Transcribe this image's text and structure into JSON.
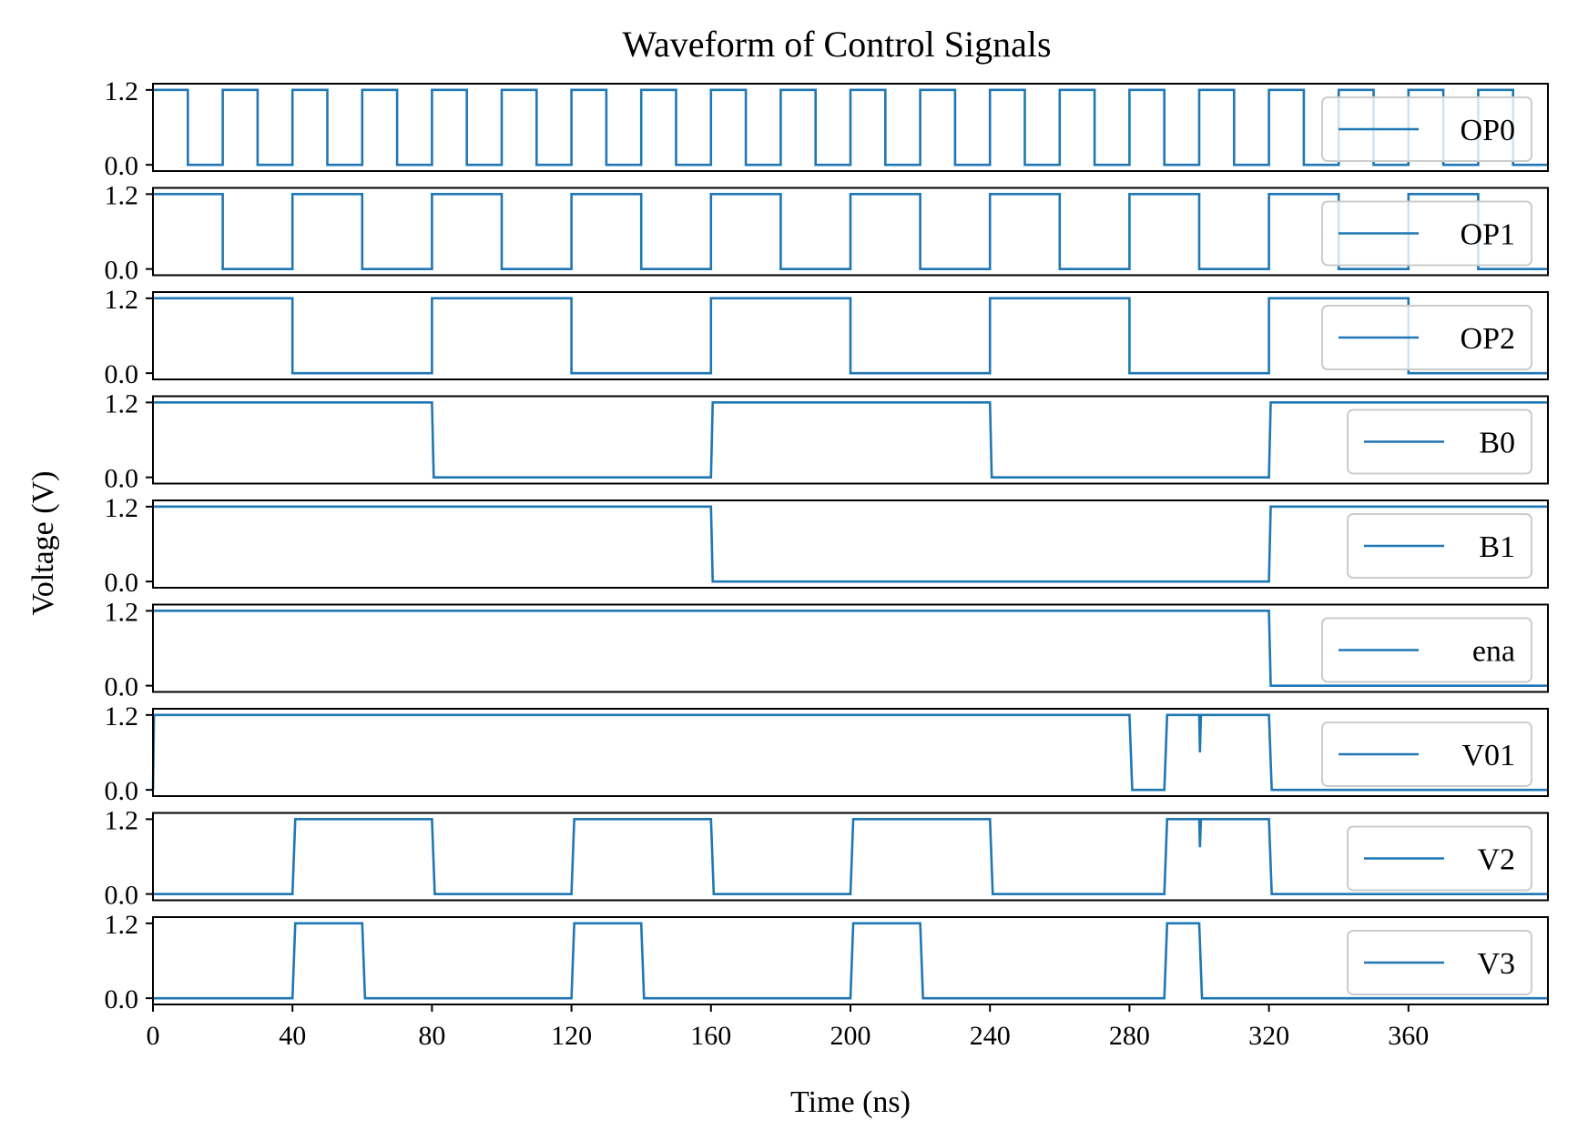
{
  "chart_data": {
    "type": "line",
    "title": "Waveform of Control Signals",
    "xlabel": "Time (ns)",
    "ylabel": "Voltage (V)",
    "xlim": [
      0,
      400
    ],
    "ylim": [
      -0.1,
      1.3
    ],
    "xticks": [
      "0",
      "40",
      "80",
      "120",
      "160",
      "200",
      "240",
      "280",
      "320",
      "360"
    ],
    "yticks": [
      "0.0",
      "1.2"
    ],
    "line_color": "#1f77b4",
    "grid": false,
    "legend_position": "right",
    "series": [
      {
        "name": "OP0",
        "points": [
          [
            0,
            1.2
          ],
          [
            10,
            1.2
          ],
          [
            10,
            0
          ],
          [
            20,
            0
          ],
          [
            20,
            1.2
          ],
          [
            30,
            1.2
          ],
          [
            30,
            0
          ],
          [
            40,
            0
          ],
          [
            40,
            1.2
          ],
          [
            50,
            1.2
          ],
          [
            50,
            0
          ],
          [
            60,
            0
          ],
          [
            60,
            1.2
          ],
          [
            70,
            1.2
          ],
          [
            70,
            0
          ],
          [
            80,
            0
          ],
          [
            80,
            1.2
          ],
          [
            90,
            1.2
          ],
          [
            90,
            0
          ],
          [
            100,
            0
          ],
          [
            100,
            1.2
          ],
          [
            110,
            1.2
          ],
          [
            110,
            0
          ],
          [
            120,
            0
          ],
          [
            120,
            1.2
          ],
          [
            130,
            1.2
          ],
          [
            130,
            0
          ],
          [
            140,
            0
          ],
          [
            140,
            1.2
          ],
          [
            150,
            1.2
          ],
          [
            150,
            0
          ],
          [
            160,
            0
          ],
          [
            160,
            1.2
          ],
          [
            170,
            1.2
          ],
          [
            170,
            0
          ],
          [
            180,
            0
          ],
          [
            180,
            1.2
          ],
          [
            190,
            1.2
          ],
          [
            190,
            0
          ],
          [
            200,
            0
          ],
          [
            200,
            1.2
          ],
          [
            210,
            1.2
          ],
          [
            210,
            0
          ],
          [
            220,
            0
          ],
          [
            220,
            1.2
          ],
          [
            230,
            1.2
          ],
          [
            230,
            0
          ],
          [
            240,
            0
          ],
          [
            240,
            1.2
          ],
          [
            250,
            1.2
          ],
          [
            250,
            0
          ],
          [
            260,
            0
          ],
          [
            260,
            1.2
          ],
          [
            270,
            1.2
          ],
          [
            270,
            0
          ],
          [
            280,
            0
          ],
          [
            280,
            1.2
          ],
          [
            290,
            1.2
          ],
          [
            290,
            0
          ],
          [
            300,
            0
          ],
          [
            300,
            1.2
          ],
          [
            310,
            1.2
          ],
          [
            310,
            0
          ],
          [
            320,
            0
          ],
          [
            320,
            1.2
          ],
          [
            330,
            1.2
          ],
          [
            330,
            0
          ],
          [
            340,
            0
          ],
          [
            340,
            1.2
          ],
          [
            350,
            1.2
          ],
          [
            350,
            0
          ],
          [
            360,
            0
          ],
          [
            360,
            1.2
          ],
          [
            370,
            1.2
          ],
          [
            370,
            0
          ],
          [
            380,
            0
          ],
          [
            380,
            1.2
          ],
          [
            390,
            1.2
          ],
          [
            390,
            0
          ],
          [
            400,
            0
          ]
        ]
      },
      {
        "name": "OP1",
        "points": [
          [
            0,
            1.2
          ],
          [
            20,
            1.2
          ],
          [
            20,
            0
          ],
          [
            40,
            0
          ],
          [
            40,
            1.2
          ],
          [
            60,
            1.2
          ],
          [
            60,
            0
          ],
          [
            80,
            0
          ],
          [
            80,
            1.2
          ],
          [
            100,
            1.2
          ],
          [
            100,
            0
          ],
          [
            120,
            0
          ],
          [
            120,
            1.2
          ],
          [
            140,
            1.2
          ],
          [
            140,
            0
          ],
          [
            160,
            0
          ],
          [
            160,
            1.2
          ],
          [
            180,
            1.2
          ],
          [
            180,
            0
          ],
          [
            200,
            0
          ],
          [
            200,
            1.2
          ],
          [
            220,
            1.2
          ],
          [
            220,
            0
          ],
          [
            240,
            0
          ],
          [
            240,
            1.2
          ],
          [
            260,
            1.2
          ],
          [
            260,
            0
          ],
          [
            280,
            0
          ],
          [
            280,
            1.2
          ],
          [
            300,
            1.2
          ],
          [
            300,
            0
          ],
          [
            320,
            0
          ],
          [
            320,
            1.2
          ],
          [
            340,
            1.2
          ],
          [
            340,
            0
          ],
          [
            360,
            0
          ],
          [
            360,
            1.2
          ],
          [
            380,
            1.2
          ],
          [
            380,
            0
          ],
          [
            400,
            0
          ]
        ]
      },
      {
        "name": "OP2",
        "points": [
          [
            0,
            1.2
          ],
          [
            40,
            1.2
          ],
          [
            40,
            0
          ],
          [
            80,
            0
          ],
          [
            80,
            1.2
          ],
          [
            120,
            1.2
          ],
          [
            120,
            0
          ],
          [
            160,
            0
          ],
          [
            160,
            1.2
          ],
          [
            200,
            1.2
          ],
          [
            200,
            0
          ],
          [
            240,
            0
          ],
          [
            240,
            1.2
          ],
          [
            280,
            1.2
          ],
          [
            280,
            0
          ],
          [
            320,
            0
          ],
          [
            320,
            1.2
          ],
          [
            360,
            1.2
          ],
          [
            360,
            0
          ],
          [
            400,
            0
          ]
        ]
      },
      {
        "name": "B0",
        "points": [
          [
            0,
            1.2
          ],
          [
            80,
            1.2
          ],
          [
            80.5,
            0
          ],
          [
            160,
            0
          ],
          [
            160.5,
            1.2
          ],
          [
            240,
            1.2
          ],
          [
            240.5,
            0
          ],
          [
            320,
            0
          ],
          [
            320.5,
            1.2
          ],
          [
            400,
            1.2
          ]
        ]
      },
      {
        "name": "B1",
        "points": [
          [
            0,
            1.2
          ],
          [
            160,
            1.2
          ],
          [
            160.5,
            0
          ],
          [
            320,
            0
          ],
          [
            320.5,
            1.2
          ],
          [
            400,
            1.2
          ]
        ]
      },
      {
        "name": "ena",
        "points": [
          [
            0,
            1.2
          ],
          [
            320,
            1.2
          ],
          [
            320.5,
            0
          ],
          [
            400,
            0
          ]
        ]
      },
      {
        "name": "V01",
        "points": [
          [
            0,
            0
          ],
          [
            0.3,
            1.2
          ],
          [
            280,
            1.2
          ],
          [
            280.8,
            0
          ],
          [
            290,
            0
          ],
          [
            290.8,
            1.2
          ],
          [
            300,
            1.2
          ],
          [
            300.2,
            0.6
          ],
          [
            300.5,
            1.2
          ],
          [
            320,
            1.2
          ],
          [
            320.8,
            0
          ],
          [
            400,
            0
          ]
        ]
      },
      {
        "name": "V2",
        "points": [
          [
            0,
            0
          ],
          [
            40,
            0
          ],
          [
            40.8,
            1.2
          ],
          [
            80,
            1.2
          ],
          [
            80.8,
            0
          ],
          [
            120,
            0
          ],
          [
            120.8,
            1.2
          ],
          [
            160,
            1.2
          ],
          [
            160.8,
            0
          ],
          [
            200,
            0
          ],
          [
            200.8,
            1.2
          ],
          [
            240,
            1.2
          ],
          [
            240.8,
            0
          ],
          [
            290,
            0
          ],
          [
            290.8,
            1.2
          ],
          [
            300,
            1.2
          ],
          [
            300.2,
            0.75
          ],
          [
            300.5,
            1.2
          ],
          [
            320,
            1.2
          ],
          [
            320.8,
            0
          ],
          [
            400,
            0
          ]
        ]
      },
      {
        "name": "V3",
        "points": [
          [
            0,
            0
          ],
          [
            40,
            0
          ],
          [
            40.8,
            1.2
          ],
          [
            60,
            1.2
          ],
          [
            60.8,
            0
          ],
          [
            120,
            0
          ],
          [
            120.8,
            1.2
          ],
          [
            140,
            1.2
          ],
          [
            140.8,
            0
          ],
          [
            200,
            0
          ],
          [
            200.8,
            1.2
          ],
          [
            220,
            1.2
          ],
          [
            220.8,
            0
          ],
          [
            290,
            0
          ],
          [
            290.8,
            1.2
          ],
          [
            300,
            1.2
          ],
          [
            300.8,
            0
          ],
          [
            400,
            0
          ]
        ]
      }
    ]
  }
}
